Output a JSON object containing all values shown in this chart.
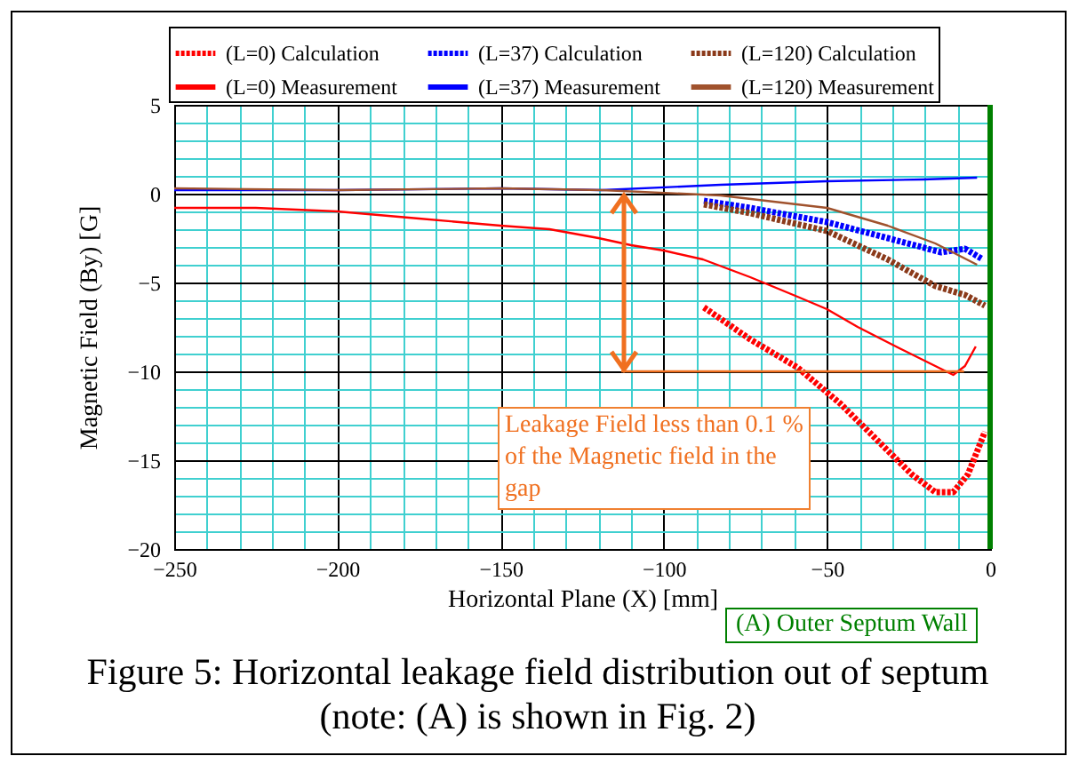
{
  "chart_data": {
    "type": "line",
    "title": "Figure 5: Horizontal leakage field distribution out of septum    (note: (A) is shown in Fig. 2)",
    "xlabel": "Horizontal Plane (X) [mm]",
    "ylabel": "Magnetic Field (By) [G]",
    "xlim": [
      -250,
      0
    ],
    "ylim": [
      -20,
      5
    ],
    "xticks": [
      -250,
      {
        "value": -240,
        "label": null
      },
      {
        "value": -230,
        "label": null
      },
      {
        "value": -220,
        "label": null
      },
      {
        "value": -210,
        "label": null
      },
      -200,
      {
        "value": -190,
        "label": null
      },
      {
        "value": -180,
        "label": null
      },
      {
        "value": -170,
        "label": null
      },
      {
        "value": -160,
        "label": null
      },
      -150,
      {
        "value": -140,
        "label": null
      },
      {
        "value": -130,
        "label": null
      },
      {
        "value": -120,
        "label": null
      },
      {
        "value": -110,
        "label": null
      },
      -100,
      {
        "value": -90,
        "label": null
      },
      {
        "value": -80,
        "label": null
      },
      {
        "value": -70,
        "label": null
      },
      {
        "value": -60,
        "label": null
      },
      -50,
      {
        "value": -40,
        "label": null
      },
      {
        "value": -30,
        "label": null
      },
      {
        "value": -20,
        "label": null
      },
      {
        "value": -10,
        "label": null
      },
      0
    ],
    "yticks": [
      -20,
      {
        "value": -19,
        "label": null
      },
      {
        "value": -18,
        "label": null
      },
      {
        "value": -17,
        "label": null
      },
      {
        "value": -16,
        "label": null
      },
      -15,
      {
        "value": -14,
        "label": null
      },
      {
        "value": -13,
        "label": null
      },
      {
        "value": -12,
        "label": null
      },
      {
        "value": -11,
        "label": null
      },
      -10,
      {
        "value": -9,
        "label": null
      },
      {
        "value": -8,
        "label": null
      },
      {
        "value": -7,
        "label": null
      },
      {
        "value": -6,
        "label": null
      },
      -5,
      {
        "value": -4,
        "label": null
      },
      {
        "value": -3,
        "label": null
      },
      {
        "value": -2,
        "label": null
      },
      {
        "value": -1,
        "label": null
      },
      0,
      {
        "value": 1,
        "label": null
      },
      {
        "value": 2,
        "label": null
      },
      {
        "value": 3,
        "label": null
      },
      {
        "value": 4,
        "label": null
      },
      5
    ],
    "grid": true,
    "legend": "top",
    "series": [
      {
        "name": "(L=0) Calculation",
        "color": "#ff0000",
        "line_style": "dotted",
        "x": [
          -87.7,
          -73.5,
          -58.9,
          -46,
          -35,
          -24,
          -16.8,
          -11.3,
          -6.8,
          -1.6
        ],
        "values": [
          -6.4,
          -8.2,
          -9.8,
          -11.8,
          -13.8,
          -15.8,
          -16.8,
          -16.8,
          -15.8,
          -13.4
        ]
      },
      {
        "name": "(L=37) Calculation",
        "color": "#0000ff",
        "line_style": "dotted",
        "x": [
          -87.7,
          -73.5,
          -50,
          -31.4,
          -15,
          -7.7,
          -2.2
        ],
        "values": [
          -0.4,
          -0.8,
          -1.6,
          -2.5,
          -3.3,
          -3.1,
          -3.7
        ]
      },
      {
        "name": "(L=120) Calculation",
        "color": "#8b3a1a",
        "line_style": "dotted",
        "x": [
          -87.7,
          -73.5,
          -50,
          -31.4,
          -16.8,
          -7.7,
          -1.6
        ],
        "values": [
          -0.6,
          -1.1,
          -2.1,
          -3.7,
          -5.2,
          -5.7,
          -6.3
        ]
      },
      {
        "name": "(L=0) Measurement",
        "color": "#ff0000",
        "line_style": "solid",
        "x": [
          -250,
          -225,
          -200,
          -175,
          -150,
          -135,
          -120,
          -110,
          -100,
          -88,
          -73.5,
          -59,
          -50,
          -40.6,
          -27.8,
          -16.8,
          -11.3,
          -7.7,
          -4.4
        ],
        "values": [
          -0.8,
          -0.8,
          -1.0,
          -1.4,
          -1.8,
          -2.0,
          -2.5,
          -2.9,
          -3.2,
          -3.7,
          -4.7,
          -5.8,
          -6.5,
          -7.5,
          -8.7,
          -9.7,
          -10.2,
          -9.7,
          -8.6
        ]
      },
      {
        "name": "(L=37) Measurement",
        "color": "#0000ff",
        "line_style": "solid",
        "x": [
          -250,
          -200,
          -150,
          -119,
          -82.6,
          -50,
          -20.5,
          -4
        ],
        "values": [
          0.2,
          0.2,
          0.3,
          0.2,
          0.5,
          0.7,
          0.8,
          0.9
        ]
      },
      {
        "name": "(L=120) Measurement",
        "color": "#a0522d",
        "line_style": "solid",
        "x": [
          -250,
          -200,
          -150,
          -119,
          -82.6,
          -50,
          -31.4,
          -16.8,
          -4
        ],
        "values": [
          0.3,
          0.2,
          0.3,
          0.2,
          -0.1,
          -0.8,
          -1.8,
          -2.8,
          -4.0
        ]
      },
      {
        "color": "#f07020",
        "line_style": "solid",
        "x": [
          -113,
          -8
        ],
        "values": [
          -10,
          -10
        ]
      }
    ],
    "ref_lines": [
      {
        "axis": "x",
        "value": 0,
        "label": "(A) Outer Septum Wall",
        "color": "#008000"
      }
    ],
    "annotations": [
      "Leakage Field less than 0.1 % of the Magnetic field in the gap"
    ]
  }
}
